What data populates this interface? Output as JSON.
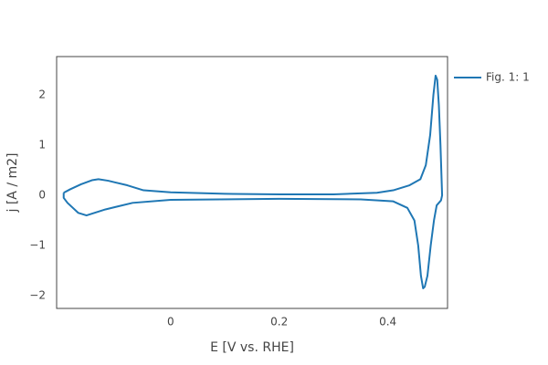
{
  "chart_data": {
    "type": "line",
    "xlabel": "E [V vs. RHE]",
    "ylabel": "j [A / m2]",
    "xlim": [
      -0.21,
      0.51
    ],
    "ylim": [
      -2.25,
      2.76
    ],
    "xticks": [
      0,
      0.2,
      0.4
    ],
    "yticks": [
      {
        "value": -2,
        "label": "−2"
      },
      {
        "value": -1,
        "label": "−1"
      },
      0,
      1,
      2
    ],
    "grid": false,
    "legend": "right",
    "series": [
      {
        "name": "Fig. 1: 1",
        "color": "#1f77b4",
        "x": [
          -0.197,
          -0.185,
          -0.165,
          -0.145,
          -0.133,
          -0.115,
          -0.08,
          -0.05,
          0,
          0.1,
          0.2,
          0.3,
          0.38,
          0.41,
          0.44,
          0.46,
          0.47,
          0.478,
          0.484,
          0.488,
          0.491,
          0.494,
          0.497,
          0.5,
          0.498,
          0.49,
          0.485,
          0.479,
          0.473,
          0.468,
          0.465,
          0.461,
          0.456,
          0.449,
          0.436,
          0.41,
          0.35,
          0.2,
          0,
          -0.07,
          -0.12,
          -0.155,
          -0.17,
          -0.19,
          -0.197,
          -0.197
        ],
        "values": [
          0.05,
          0.12,
          0.22,
          0.3,
          0.32,
          0.29,
          0.2,
          0.1,
          0.06,
          0.03,
          0.02,
          0.02,
          0.05,
          0.1,
          0.2,
          0.32,
          0.6,
          1.2,
          2.0,
          2.38,
          2.3,
          1.8,
          1.0,
          0,
          -0.1,
          -0.2,
          -0.5,
          -1.0,
          -1.6,
          -1.82,
          -1.85,
          -1.6,
          -1.0,
          -0.5,
          -0.25,
          -0.12,
          -0.08,
          -0.07,
          -0.09,
          -0.15,
          -0.28,
          -0.4,
          -0.35,
          -0.15,
          -0.05,
          0.05
        ]
      }
    ]
  }
}
